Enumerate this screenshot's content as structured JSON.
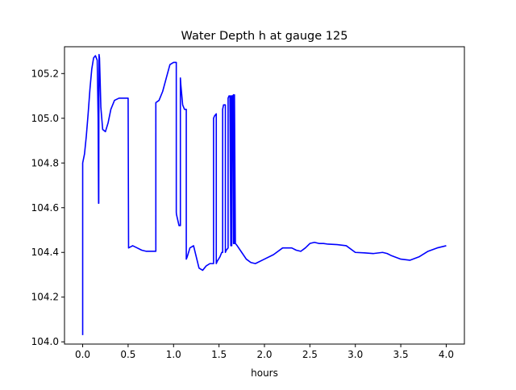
{
  "chart_data": {
    "type": "line",
    "title": "Water Depth h at gauge 125",
    "xlabel": "hours",
    "ylabel": "",
    "xlim": [
      -0.2,
      4.2
    ],
    "ylim": [
      103.99,
      105.32
    ],
    "x_ticks": [
      0.0,
      0.5,
      1.0,
      1.5,
      2.0,
      2.5,
      3.0,
      3.5,
      4.0
    ],
    "x_tick_labels": [
      "0.0",
      "0.5",
      "1.0",
      "1.5",
      "2.0",
      "2.5",
      "3.0",
      "3.5",
      "4.0"
    ],
    "y_ticks": [
      104.0,
      104.2,
      104.4,
      104.6,
      104.8,
      105.0,
      105.2
    ],
    "y_tick_labels": [
      "104.0",
      "104.2",
      "104.4",
      "104.6",
      "104.8",
      "105.0",
      "105.2"
    ],
    "grid": false,
    "series": [
      {
        "color": "#0000ff",
        "x": [
          0.0,
          0.0,
          0.0,
          0.0,
          0.005,
          0.01,
          0.02,
          0.04,
          0.06,
          0.08,
          0.1,
          0.12,
          0.14,
          0.16,
          0.17,
          0.175,
          0.177,
          0.178,
          0.18,
          0.185,
          0.19,
          0.2,
          0.22,
          0.25,
          0.28,
          0.31,
          0.35,
          0.4,
          0.44,
          0.48,
          0.5,
          0.505,
          0.505,
          0.55,
          0.6,
          0.65,
          0.7,
          0.75,
          0.8,
          0.805,
          0.805,
          0.84,
          0.88,
          0.92,
          0.96,
          1.0,
          1.03,
          1.03,
          1.032,
          1.06,
          1.075,
          1.075,
          1.08,
          1.1,
          1.12,
          1.14,
          1.14,
          1.15,
          1.18,
          1.22,
          1.25,
          1.28,
          1.32,
          1.36,
          1.4,
          1.43,
          1.44,
          1.44,
          1.45,
          1.47,
          1.47,
          1.48,
          1.51,
          1.53,
          1.54,
          1.54,
          1.55,
          1.57,
          1.57,
          1.58,
          1.6,
          1.6,
          1.61,
          1.62,
          1.63,
          1.63,
          1.64,
          1.64,
          1.65,
          1.66,
          1.66,
          1.67,
          1.67,
          1.68,
          1.7,
          1.75,
          1.8,
          1.85,
          1.9,
          2.0,
          2.1,
          2.2,
          2.3,
          2.35,
          2.4,
          2.45,
          2.5,
          2.55,
          2.6,
          2.65,
          2.7,
          2.8,
          2.9,
          3.0,
          3.1,
          3.2,
          3.3,
          3.35,
          3.4,
          3.5,
          3.6,
          3.7,
          3.8,
          3.9,
          4.0
        ],
        "values": [
          104.03,
          104.14,
          104.6,
          104.8,
          104.81,
          104.82,
          104.84,
          104.92,
          105.02,
          105.13,
          105.22,
          105.27,
          105.28,
          105.26,
          105.0,
          104.62,
          104.62,
          105.0,
          105.285,
          105.27,
          105.2,
          105.05,
          104.95,
          104.94,
          104.98,
          105.04,
          105.08,
          105.09,
          105.09,
          105.09,
          105.09,
          104.42,
          104.42,
          104.43,
          104.42,
          104.41,
          104.405,
          104.405,
          104.405,
          104.405,
          105.07,
          105.08,
          105.12,
          105.18,
          105.24,
          105.25,
          105.25,
          104.58,
          104.57,
          104.52,
          104.52,
          105.18,
          105.15,
          105.06,
          105.04,
          105.04,
          104.37,
          104.38,
          104.42,
          104.43,
          104.38,
          104.33,
          104.32,
          104.34,
          104.35,
          104.35,
          104.35,
          105.0,
          105.01,
          105.02,
          104.35,
          104.36,
          104.38,
          104.4,
          104.4,
          105.04,
          105.06,
          105.06,
          104.4,
          104.41,
          104.42,
          105.09,
          105.1,
          105.1,
          104.43,
          105.1,
          105.1,
          104.43,
          105.1,
          105.105,
          104.44,
          104.44,
          105.105,
          104.44,
          104.43,
          104.4,
          104.37,
          104.355,
          104.35,
          104.37,
          104.39,
          104.42,
          104.42,
          104.41,
          104.405,
          104.42,
          104.44,
          104.445,
          104.44,
          104.44,
          104.437,
          104.435,
          104.43,
          104.4,
          104.398,
          104.395,
          104.4,
          104.395,
          104.385,
          104.37,
          104.365,
          104.38,
          104.405,
          104.42,
          104.43
        ]
      }
    ]
  }
}
